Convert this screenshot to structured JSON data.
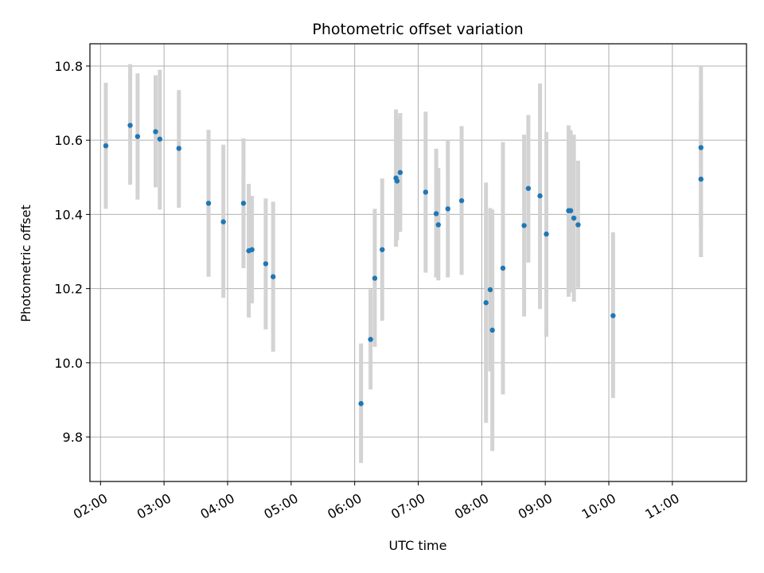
{
  "chart_data": {
    "type": "scatter",
    "title": "Photometric offset variation",
    "xlabel": "UTC time",
    "ylabel": "Photometric offset",
    "x_tick_labels": [
      "02:00",
      "03:00",
      "04:00",
      "05:00",
      "06:00",
      "07:00",
      "08:00",
      "09:00",
      "10:00",
      "11:00"
    ],
    "y_tick_labels": [
      "9.8",
      "10.0",
      "10.2",
      "10.4",
      "10.6",
      "10.8"
    ],
    "xlim": [
      "01:50",
      "12:10"
    ],
    "ylim": [
      9.68,
      10.86
    ],
    "grid": true,
    "colors": {
      "points": "#1f77b4",
      "errorbars": "#d3d3d3",
      "grid": "#b0b0b0"
    },
    "points": [
      {
        "x": "02:05",
        "y": 10.585,
        "ylo": 10.415,
        "yhi": 10.755
      },
      {
        "x": "02:28",
        "y": 10.64,
        "ylo": 10.48,
        "yhi": 10.805
      },
      {
        "x": "02:35",
        "y": 10.61,
        "ylo": 10.44,
        "yhi": 10.78
      },
      {
        "x": "02:52",
        "y": 10.623,
        "ylo": 10.473,
        "yhi": 10.775
      },
      {
        "x": "02:56",
        "y": 10.603,
        "ylo": 10.413,
        "yhi": 10.79
      },
      {
        "x": "03:14",
        "y": 10.578,
        "ylo": 10.418,
        "yhi": 10.735
      },
      {
        "x": "03:42",
        "y": 10.43,
        "ylo": 10.232,
        "yhi": 10.628
      },
      {
        "x": "03:56",
        "y": 10.38,
        "ylo": 10.175,
        "yhi": 10.588
      },
      {
        "x": "04:15",
        "y": 10.43,
        "ylo": 10.255,
        "yhi": 10.605
      },
      {
        "x": "04:20",
        "y": 10.302,
        "ylo": 10.122,
        "yhi": 10.482
      },
      {
        "x": "04:23",
        "y": 10.305,
        "ylo": 10.16,
        "yhi": 10.45
      },
      {
        "x": "04:36",
        "y": 10.267,
        "ylo": 10.09,
        "yhi": 10.443
      },
      {
        "x": "04:43",
        "y": 10.232,
        "ylo": 10.03,
        "yhi": 10.434
      },
      {
        "x": "06:06",
        "y": 9.89,
        "ylo": 9.73,
        "yhi": 10.052
      },
      {
        "x": "06:15",
        "y": 10.063,
        "ylo": 9.928,
        "yhi": 10.198
      },
      {
        "x": "06:19",
        "y": 10.228,
        "ylo": 10.043,
        "yhi": 10.415
      },
      {
        "x": "06:26",
        "y": 10.305,
        "ylo": 10.113,
        "yhi": 10.497
      },
      {
        "x": "06:39",
        "y": 10.498,
        "ylo": 10.313,
        "yhi": 10.683
      },
      {
        "x": "06:40",
        "y": 10.49,
        "ylo": 10.33,
        "yhi": 10.66
      },
      {
        "x": "06:43",
        "y": 10.513,
        "ylo": 10.353,
        "yhi": 10.673
      },
      {
        "x": "07:07",
        "y": 10.46,
        "ylo": 10.243,
        "yhi": 10.677
      },
      {
        "x": "07:17",
        "y": 10.402,
        "ylo": 10.23,
        "yhi": 10.577
      },
      {
        "x": "07:19",
        "y": 10.372,
        "ylo": 10.222,
        "yhi": 10.525
      },
      {
        "x": "07:28",
        "y": 10.415,
        "ylo": 10.23,
        "yhi": 10.6
      },
      {
        "x": "07:41",
        "y": 10.437,
        "ylo": 10.237,
        "yhi": 10.638
      },
      {
        "x": "08:04",
        "y": 10.162,
        "ylo": 9.838,
        "yhi": 10.486
      },
      {
        "x": "08:08",
        "y": 10.197,
        "ylo": 9.977,
        "yhi": 10.417
      },
      {
        "x": "08:10",
        "y": 10.088,
        "ylo": 9.762,
        "yhi": 10.413
      },
      {
        "x": "08:20",
        "y": 10.255,
        "ylo": 9.915,
        "yhi": 10.595
      },
      {
        "x": "08:40",
        "y": 10.37,
        "ylo": 10.125,
        "yhi": 10.615
      },
      {
        "x": "08:44",
        "y": 10.47,
        "ylo": 10.27,
        "yhi": 10.668
      },
      {
        "x": "08:55",
        "y": 10.45,
        "ylo": 10.145,
        "yhi": 10.753
      },
      {
        "x": "09:01",
        "y": 10.347,
        "ylo": 10.07,
        "yhi": 10.622
      },
      {
        "x": "09:22",
        "y": 10.41,
        "ylo": 10.178,
        "yhi": 10.64
      },
      {
        "x": "09:24",
        "y": 10.41,
        "ylo": 10.19,
        "yhi": 10.627
      },
      {
        "x": "09:27",
        "y": 10.39,
        "ylo": 10.165,
        "yhi": 10.615
      },
      {
        "x": "09:31",
        "y": 10.372,
        "ylo": 10.202,
        "yhi": 10.545
      },
      {
        "x": "10:04",
        "y": 10.127,
        "ylo": 9.905,
        "yhi": 10.352
      },
      {
        "x": "11:27",
        "y": 10.58,
        "ylo": 10.365,
        "yhi": 10.8
      },
      {
        "x": "11:27",
        "y": 10.495,
        "ylo": 10.285,
        "yhi": 10.707
      }
    ]
  }
}
